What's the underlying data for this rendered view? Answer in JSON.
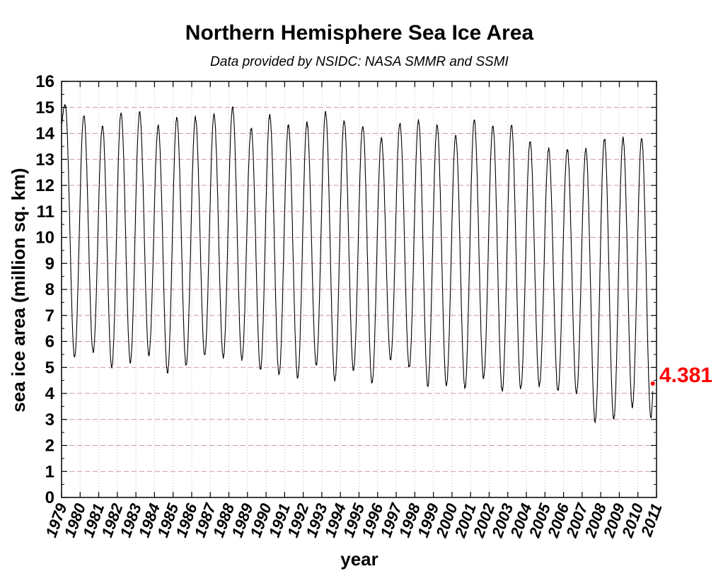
{
  "chart_data": {
    "type": "line",
    "title": "Northern Hemisphere Sea Ice Area",
    "subtitle": "Data provided by NSIDC: NASA SMMR and SSMI",
    "xlabel": "year",
    "ylabel": "sea ice area (million sq. km)",
    "xlim": [
      1979,
      2011
    ],
    "ylim": [
      0,
      16
    ],
    "yticks": [
      "0",
      "1",
      "2",
      "3",
      "4",
      "5",
      "6",
      "7",
      "8",
      "9",
      "10",
      "11",
      "12",
      "13",
      "14",
      "15",
      "16"
    ],
    "xticks": [
      "1979",
      "1980",
      "1981",
      "1982",
      "1983",
      "1984",
      "1985",
      "1986",
      "1987",
      "1988",
      "1989",
      "1990",
      "1991",
      "1992",
      "1993",
      "1994",
      "1995",
      "1996",
      "1997",
      "1998",
      "1999",
      "2000",
      "2001",
      "2002",
      "2003",
      "2004",
      "2005",
      "2006",
      "2007",
      "2008",
      "2009",
      "2010",
      "2011"
    ],
    "grid": "dotted vertical at years, dashed horizontal at integers",
    "series": [
      {
        "color": "#000000",
        "annual_max": [
          15.1,
          14.7,
          14.3,
          14.8,
          14.8,
          14.3,
          14.6,
          14.6,
          14.7,
          15.0,
          14.2,
          14.7,
          14.3,
          14.4,
          14.8,
          14.5,
          14.3,
          13.8,
          14.4,
          14.5,
          14.3,
          13.9,
          14.5,
          14.3,
          14.3,
          13.7,
          13.4,
          13.4,
          13.4,
          13.8,
          13.8,
          13.8
        ],
        "annual_min": [
          5.4,
          5.6,
          5.0,
          5.2,
          5.5,
          4.8,
          5.1,
          5.5,
          5.4,
          5.3,
          4.9,
          4.7,
          4.6,
          5.1,
          4.5,
          4.9,
          4.4,
          5.3,
          5.0,
          4.3,
          4.3,
          4.2,
          4.6,
          4.1,
          4.2,
          4.3,
          4.1,
          4.0,
          2.9,
          3.0,
          3.5,
          3.1
        ]
      }
    ],
    "annotation": {
      "label": "4.381",
      "x": 2010.8,
      "y": 4.381,
      "color": "#ff0000"
    }
  }
}
